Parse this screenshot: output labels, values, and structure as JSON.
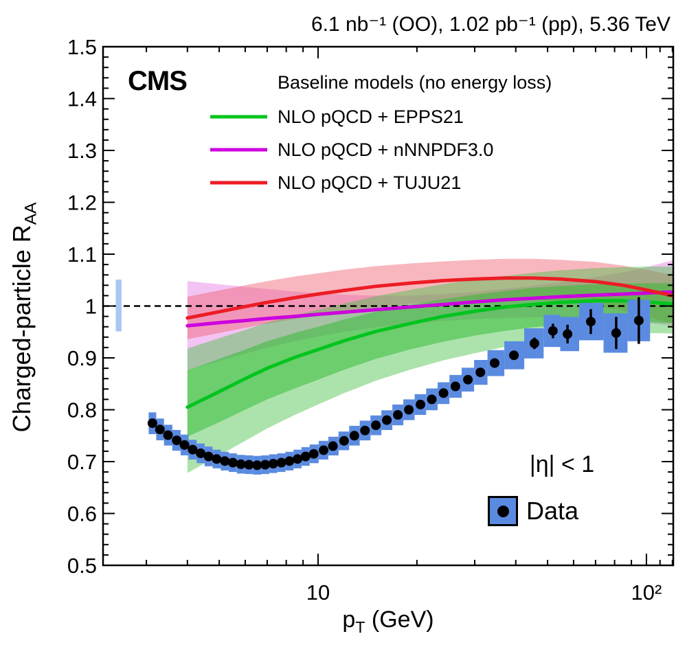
{
  "header": {
    "lumi_title": "6.1 nb⁻¹ (OO), 1.02 pb⁻¹ (pp), 5.36 TeV"
  },
  "plot": {
    "cms_label": "CMS",
    "models_header": "Baseline models (no energy loss)",
    "model_legend": [
      {
        "label": "NLO pQCD + EPPS21",
        "color": "#00c41e"
      },
      {
        "label": "NLO pQCD + nNNPDF3.0",
        "color": "#cc00dd"
      },
      {
        "label": "NLO pQCD + TUJU21",
        "color": "#ec1c24"
      }
    ],
    "eta_label": "|η| < 1",
    "data_legend_label": "Data",
    "xlabel": {
      "p": "p",
      "sub": "T",
      "rest": " (GeV)"
    },
    "ylabel": {
      "main": "Charged-particle R",
      "sub": "AA"
    }
  },
  "chart_data": {
    "type": "scatter",
    "title": "6.1 nb⁻¹ (OO), 1.02 pb⁻¹ (pp), 5.36 TeV",
    "xlabel": "pT (GeV)",
    "ylabel": "Charged-particle RAA",
    "x_axis": {
      "scale": "log",
      "min": 2.214,
      "max": 120.7,
      "major_ticks": [
        {
          "value": 10,
          "label": "10"
        },
        {
          "value": 100,
          "label": "10²"
        }
      ],
      "minor_ticks": [
        3,
        4,
        5,
        6,
        7,
        8,
        9,
        20,
        30,
        40,
        50,
        60,
        70,
        80,
        90,
        110,
        120
      ]
    },
    "y_axis": {
      "min": 0.5,
      "max": 1.5,
      "minor_tick_step": 0.02,
      "major_ticks": [
        0.5,
        0.6,
        0.7,
        0.8,
        0.9,
        1.0,
        1.1,
        1.2,
        1.3,
        1.4,
        1.5
      ],
      "major_tick_labels": [
        "0.5",
        "0.6",
        "0.7",
        "0.8",
        "0.9",
        "1",
        "1.1",
        "1.2",
        "1.3",
        "1.4",
        "1.5"
      ]
    },
    "reference_line_y": 1.0,
    "normalization_band": {
      "pt_lo": 2.42,
      "pt_hi": 2.52,
      "lo": 0.951,
      "hi": 1.051,
      "color": "#a9c7f3"
    },
    "model_pt": [
      4,
      5,
      6,
      7,
      8.5,
      10,
      12,
      15,
      19,
      24,
      30,
      37,
      45,
      55,
      70,
      85,
      100,
      120
    ],
    "bands": [
      {
        "name": "nNNPDF3.0-uncertainty",
        "color": "#e06ae0",
        "opacity": 0.4,
        "up": [
          1.048,
          1.042,
          1.037,
          1.033,
          1.028,
          1.025,
          1.022,
          1.02,
          1.02,
          1.023,
          1.027,
          1.033,
          1.039,
          1.046,
          1.056,
          1.065,
          1.075,
          1.088
        ],
        "lo": [
          0.876,
          0.894,
          0.908,
          0.92,
          0.932,
          0.941,
          0.95,
          0.959,
          0.966,
          0.971,
          0.975,
          0.977,
          0.978,
          0.978,
          0.976,
          0.972,
          0.968,
          0.962
        ]
      },
      {
        "name": "TUJU21-uncertainty",
        "color": "#f06070",
        "opacity": 0.45,
        "up": [
          1.018,
          1.03,
          1.04,
          1.048,
          1.057,
          1.063,
          1.07,
          1.077,
          1.082,
          1.086,
          1.089,
          1.091,
          1.091,
          1.089,
          1.085,
          1.078,
          1.07,
          1.06
        ],
        "lo": [
          0.936,
          0.948,
          0.958,
          0.966,
          0.975,
          0.982,
          0.99,
          0.998,
          1.004,
          1.009,
          1.012,
          1.013,
          1.012,
          1.008,
          1.001,
          0.991,
          0.98,
          0.966
        ]
      },
      {
        "name": "EPPS21-outer-uncertainty",
        "color": "#47c247",
        "opacity": 0.45,
        "up": [
          0.918,
          0.938,
          0.954,
          0.968,
          0.982,
          0.993,
          1.005,
          1.019,
          1.031,
          1.042,
          1.051,
          1.058,
          1.064,
          1.069,
          1.073,
          1.075,
          1.076,
          1.076
        ],
        "lo": [
          0.678,
          0.712,
          0.74,
          0.764,
          0.79,
          0.81,
          0.832,
          0.856,
          0.877,
          0.895,
          0.909,
          0.921,
          0.93,
          0.938,
          0.944,
          0.947,
          0.948,
          0.947
        ]
      },
      {
        "name": "EPPS21-inner-uncertainty",
        "color": "#2db92d",
        "opacity": 0.5,
        "up": [
          0.876,
          0.898,
          0.916,
          0.932,
          0.948,
          0.96,
          0.974,
          0.989,
          1.002,
          1.013,
          1.022,
          1.029,
          1.035,
          1.039,
          1.042,
          1.043,
          1.044,
          1.044
        ],
        "lo": [
          0.748,
          0.776,
          0.8,
          0.82,
          0.841,
          0.858,
          0.877,
          0.898,
          0.916,
          0.931,
          0.943,
          0.952,
          0.959,
          0.964,
          0.968,
          0.969,
          0.969,
          0.967
        ]
      }
    ],
    "lines": [
      {
        "name": "NLO pQCD + EPPS21",
        "color": "#00c41e",
        "values": [
          0.805,
          0.835,
          0.86,
          0.88,
          0.901,
          0.916,
          0.933,
          0.951,
          0.966,
          0.98,
          0.99,
          0.998,
          1.003,
          1.007,
          1.01,
          1.01,
          1.008,
          1.004
        ]
      },
      {
        "name": "NLO pQCD + nNNPDF3.0",
        "color": "#cc00dd",
        "values": [
          0.962,
          0.968,
          0.972,
          0.976,
          0.98,
          0.984,
          0.988,
          0.993,
          0.998,
          1.003,
          1.008,
          1.012,
          1.015,
          1.018,
          1.021,
          1.023,
          1.025,
          1.027
        ]
      },
      {
        "name": "NLO pQCD + TUJU21",
        "color": "#ec1c24",
        "values": [
          0.977,
          0.989,
          0.999,
          1.007,
          1.016,
          1.023,
          1.03,
          1.038,
          1.044,
          1.049,
          1.052,
          1.054,
          1.054,
          1.052,
          1.047,
          1.04,
          1.031,
          1.02
        ]
      }
    ],
    "data_series": {
      "name": "Data",
      "marker_color": "#000000",
      "box_color": "#5b8be0",
      "pt": [
        3.13,
        3.3,
        3.49,
        3.71,
        3.92,
        4.15,
        4.39,
        4.64,
        4.91,
        5.2,
        5.5,
        5.82,
        6.16,
        6.52,
        6.9,
        7.3,
        7.73,
        8.18,
        8.66,
        9.16,
        9.7,
        10.4,
        11.1,
        12.0,
        12.9,
        13.9,
        15.0,
        16.2,
        17.5,
        18.9,
        20.5,
        22.2,
        24.1,
        26.2,
        28.6,
        31.2,
        34.5,
        39.5,
        45.6,
        51.9,
        57.5,
        67.7,
        80.9,
        94.8
      ],
      "raa": [
        0.774,
        0.762,
        0.751,
        0.741,
        0.732,
        0.723,
        0.716,
        0.71,
        0.705,
        0.701,
        0.698,
        0.695,
        0.694,
        0.693,
        0.694,
        0.696,
        0.698,
        0.701,
        0.705,
        0.71,
        0.715,
        0.722,
        0.73,
        0.74,
        0.75,
        0.76,
        0.77,
        0.78,
        0.79,
        0.8,
        0.81,
        0.82,
        0.832,
        0.845,
        0.858,
        0.872,
        0.89,
        0.905,
        0.928,
        0.952,
        0.946,
        0.97,
        0.948,
        0.972
      ],
      "sys": [
        0.021,
        0.021,
        0.02,
        0.02,
        0.02,
        0.019,
        0.019,
        0.019,
        0.018,
        0.018,
        0.018,
        0.018,
        0.018,
        0.018,
        0.018,
        0.018,
        0.018,
        0.018,
        0.018,
        0.018,
        0.018,
        0.018,
        0.018,
        0.018,
        0.019,
        0.019,
        0.019,
        0.019,
        0.02,
        0.02,
        0.02,
        0.021,
        0.021,
        0.022,
        0.023,
        0.024,
        0.025,
        0.027,
        0.029,
        0.031,
        0.033,
        0.036,
        0.038,
        0.04
      ],
      "stat": [
        0,
        0,
        0,
        0,
        0,
        0,
        0,
        0,
        0,
        0,
        0,
        0,
        0,
        0,
        0,
        0,
        0,
        0,
        0,
        0,
        0,
        0,
        0,
        0,
        0,
        0,
        0,
        0,
        0,
        0,
        0,
        0,
        0,
        0,
        0,
        0.006,
        0.007,
        0.009,
        0.011,
        0.014,
        0.018,
        0.024,
        0.031,
        0.045
      ]
    }
  }
}
